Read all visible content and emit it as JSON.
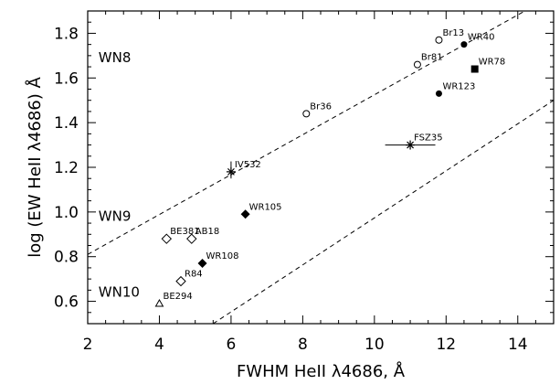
{
  "chart_data": {
    "type": "scatter",
    "xlabel": "FWHM HeII λ4686, Å",
    "ylabel": "log (EW HeII λ4686) Å",
    "xlim": [
      2,
      15
    ],
    "ylim": [
      0.5,
      1.9
    ],
    "xticks": [
      2,
      4,
      6,
      8,
      10,
      12,
      14
    ],
    "yticks": [
      0.6,
      0.8,
      1.0,
      1.2,
      1.4,
      1.6,
      1.8
    ],
    "grid": false,
    "dashed_lines": [
      {
        "x": [
          2.0,
          14.2
        ],
        "y": [
          0.81,
          1.9
        ]
      },
      {
        "x": [
          5.5,
          15.0
        ],
        "y": [
          0.5,
          1.5
        ]
      }
    ],
    "region_labels": [
      {
        "text": "WN8",
        "x": 2.3,
        "y": 1.67
      },
      {
        "text": "WN9",
        "x": 2.3,
        "y": 0.96
      },
      {
        "text": "WN10",
        "x": 2.3,
        "y": 0.62
      }
    ],
    "points": [
      {
        "label": "Br13",
        "x": 11.8,
        "y": 1.77,
        "marker": "open-circle"
      },
      {
        "label": "WR40",
        "x": 12.5,
        "y": 1.75,
        "marker": "filled-circle"
      },
      {
        "label": "Br81",
        "x": 11.2,
        "y": 1.66,
        "marker": "open-circle"
      },
      {
        "label": "WR78",
        "x": 12.8,
        "y": 1.64,
        "marker": "filled-square"
      },
      {
        "label": "WR123",
        "x": 11.8,
        "y": 1.53,
        "marker": "filled-circle"
      },
      {
        "label": "Br36",
        "x": 8.1,
        "y": 1.44,
        "marker": "open-circle"
      },
      {
        "label": "FSZ35",
        "x": 11.0,
        "y": 1.3,
        "marker": "asterisk",
        "xerr": 0.7
      },
      {
        "label": "IV532",
        "x": 6.0,
        "y": 1.18,
        "marker": "asterisk",
        "yerr": 0.03
      },
      {
        "label": "WR105",
        "x": 6.4,
        "y": 0.99,
        "marker": "filled-diamond"
      },
      {
        "label": "BE381",
        "x": 4.2,
        "y": 0.88,
        "marker": "open-diamond"
      },
      {
        "label": "AB18",
        "x": 4.9,
        "y": 0.88,
        "marker": "open-diamond"
      },
      {
        "label": "WR108",
        "x": 5.2,
        "y": 0.77,
        "marker": "filled-diamond"
      },
      {
        "label": "R84",
        "x": 4.6,
        "y": 0.69,
        "marker": "open-diamond"
      },
      {
        "label": "BE294",
        "x": 4.0,
        "y": 0.59,
        "marker": "open-triangle"
      }
    ]
  }
}
